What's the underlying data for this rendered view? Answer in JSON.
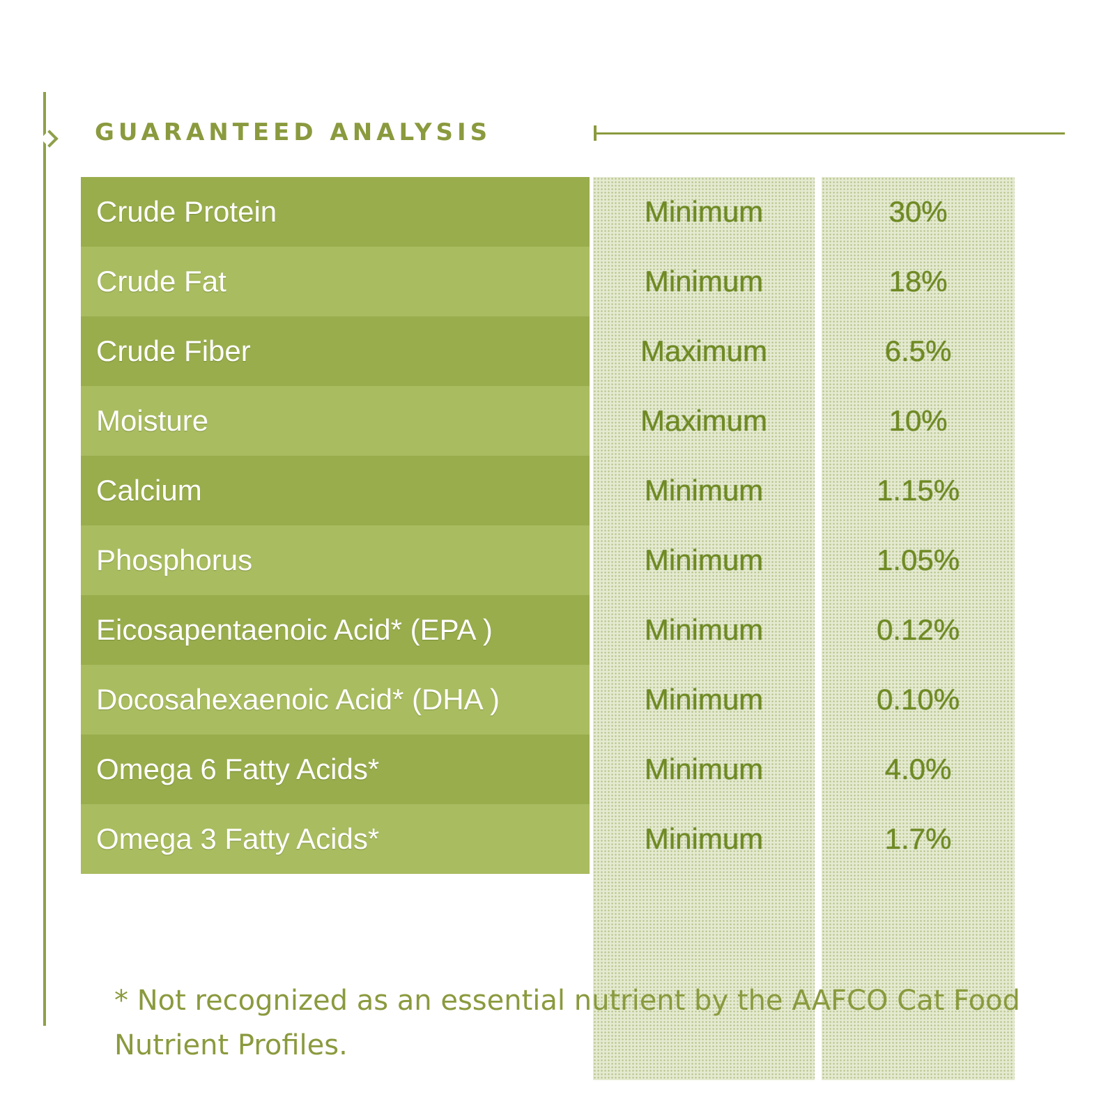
{
  "title": "GUARANTEED ANALYSIS",
  "rows": [
    {
      "nutrient": "Crude Protein",
      "qualifier": "Minimum",
      "value": "30%"
    },
    {
      "nutrient": "Crude Fat",
      "qualifier": "Minimum",
      "value": "18%"
    },
    {
      "nutrient": "Crude Fiber",
      "qualifier": "Maximum",
      "value": "6.5%"
    },
    {
      "nutrient": "Moisture",
      "qualifier": "Maximum",
      "value": "10%"
    },
    {
      "nutrient": "Calcium",
      "qualifier": "Minimum",
      "value": "1.15%"
    },
    {
      "nutrient": "Phosphorus",
      "qualifier": "Minimum",
      "value": "1.05%"
    },
    {
      "nutrient": "Eicosapentaenoic Acid* (EPA )",
      "qualifier": "Minimum",
      "value": "0.12%"
    },
    {
      "nutrient": "Docosahexaenoic Acid* (DHA )",
      "qualifier": "Minimum",
      "value": "0.10%"
    },
    {
      "nutrient": "Omega 6 Fatty Acids*",
      "qualifier": "Minimum",
      "value": "4.0%"
    },
    {
      "nutrient": "Omega 3 Fatty Acids*",
      "qualifier": "Minimum",
      "value": "1.7%"
    }
  ],
  "footnote": "* Not recognized as an essential nutrient by the AAFCO Cat Food Nutrient Profiles.",
  "colors": {
    "accent": "#8a9a3e",
    "row_dark": "#99ad4c",
    "row_light": "#a9bc60",
    "value_text": "#6f8a22"
  }
}
